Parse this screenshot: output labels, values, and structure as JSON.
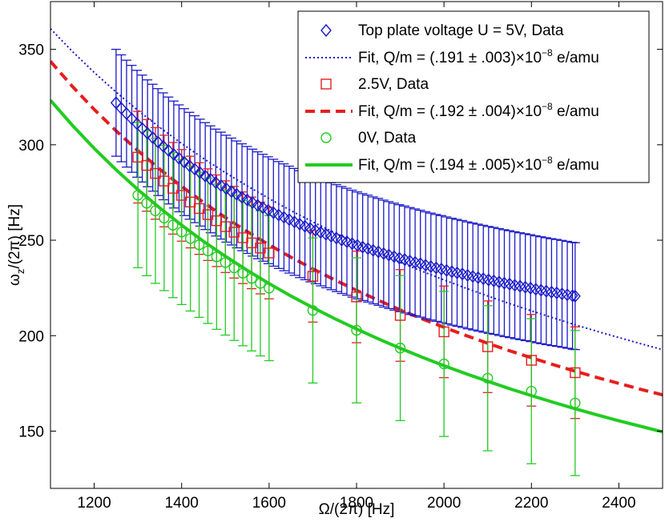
{
  "chart_data": {
    "type": "scatter",
    "xlabel": "Ω/(2π) [Hz]",
    "ylabel_main": "ω",
    "ylabel_sub": "z",
    "ylabel_rest": "/(2π) [Hz]",
    "xlim": [
      1100,
      2500
    ],
    "ylim": [
      120,
      375
    ],
    "xticks": [
      1200,
      1400,
      1600,
      1800,
      2000,
      2200,
      2400
    ],
    "yticks": [
      150,
      200,
      250,
      300,
      350
    ],
    "grid": false,
    "legend_position": "top-right",
    "colors": {
      "blue": "#1a1ac8",
      "red": "#e61e1e",
      "green": "#22cc22"
    },
    "series": [
      {
        "name": "Top plate voltage U = 5V, Data",
        "marker": "diamond",
        "color": "#1a1ac8",
        "x": [
          1250,
          1262,
          1274,
          1286,
          1298,
          1310,
          1322,
          1334,
          1346,
          1358,
          1370,
          1382,
          1394,
          1406,
          1418,
          1430,
          1442,
          1454,
          1466,
          1478,
          1490,
          1502,
          1514,
          1526,
          1538,
          1550,
          1562,
          1574,
          1586,
          1598,
          1610,
          1622,
          1634,
          1646,
          1658,
          1670,
          1682,
          1694,
          1706,
          1718,
          1730,
          1742,
          1754,
          1766,
          1778,
          1790,
          1802,
          1814,
          1826,
          1838,
          1850,
          1862,
          1874,
          1886,
          1898,
          1910,
          1922,
          1934,
          1946,
          1958,
          1970,
          1982,
          1994,
          2006,
          2018,
          2030,
          2042,
          2054,
          2066,
          2078,
          2090,
          2102,
          2114,
          2126,
          2138,
          2150,
          2162,
          2174,
          2186,
          2198,
          2210,
          2222,
          2234,
          2246,
          2258,
          2270,
          2282,
          2294,
          2300
        ],
        "y": [
          322,
          319.1,
          316.3,
          313.6,
          311,
          308.5,
          306,
          303.7,
          301.4,
          299.2,
          297,
          294.9,
          292.9,
          290.9,
          289,
          287.2,
          285.4,
          283.6,
          281.9,
          280.2,
          278.6,
          277,
          275.5,
          274,
          272.5,
          271.1,
          269.7,
          268.3,
          267,
          265.7,
          264.4,
          263.2,
          262,
          260.8,
          259.6,
          258.4,
          257.3,
          256.2,
          255.2,
          254.1,
          253.1,
          252.1,
          251.1,
          250.1,
          249.2,
          248.2,
          247.3,
          246.4,
          245.6,
          244.7,
          243.9,
          243,
          242.2,
          241.4,
          240.6,
          239.9,
          239.1,
          238.4,
          237.7,
          236.9,
          236.2,
          235.5,
          234.9,
          234.2,
          233.5,
          232.9,
          232.3,
          231.6,
          231,
          230.4,
          229.8,
          229.2,
          228.7,
          228.1,
          227.5,
          227,
          226.4,
          225.9,
          225.4,
          224.9,
          224.3,
          223.8,
          223.3,
          222.8,
          222.4,
          221.9,
          221.4,
          220.9,
          220.7
        ],
        "err": 28
      },
      {
        "name": "Fit, Q/m = (.191 ± .003)×10⁻⁸ e/amu",
        "line": "dotted",
        "color": "#1a1ac8",
        "x": [
          1100,
          1150,
          1200,
          1250,
          1300,
          1350,
          1400,
          1450,
          1500,
          1550,
          1600,
          1650,
          1700,
          1750,
          1800,
          1850,
          1900,
          1950,
          2000,
          2050,
          2100,
          2150,
          2200,
          2250,
          2300,
          2350,
          2400,
          2450,
          2500
        ],
        "y": [
          360.8,
          348.9,
          337.9,
          327.6,
          318,
          309.1,
          300.7,
          292.8,
          285.4,
          278.4,
          271.8,
          265.5,
          259.6,
          253.9,
          248.5,
          243.4,
          238.4,
          233.7,
          229.2,
          224.9,
          220.8,
          216.8,
          213,
          209.3,
          205.7,
          202.3,
          199,
          195.8,
          192.7
        ]
      },
      {
        "name": "2.5V, Data",
        "marker": "square",
        "color": "#e61e1e",
        "x": [
          1300,
          1320,
          1340,
          1360,
          1380,
          1400,
          1420,
          1440,
          1460,
          1480,
          1500,
          1520,
          1540,
          1560,
          1580,
          1600,
          1700,
          1800,
          1900,
          2000,
          2100,
          2200,
          2300
        ],
        "y": [
          293.5,
          289.2,
          285,
          281,
          277.2,
          273.5,
          270,
          266.6,
          263.4,
          260.2,
          257.1,
          254.2,
          251.3,
          248.6,
          245.9,
          243.3,
          231.1,
          220.3,
          210.6,
          202,
          194.2,
          187.1,
          180.6
        ],
        "err": 24
      },
      {
        "name": "Fit, Q/m = (.192 ± .004)×10⁻⁸ e/amu",
        "line": "dashed",
        "color": "#e61e1e",
        "x": [
          1100,
          1150,
          1200,
          1250,
          1300,
          1350,
          1400,
          1450,
          1500,
          1550,
          1600,
          1650,
          1700,
          1750,
          1800,
          1850,
          1900,
          1950,
          2000,
          2050,
          2100,
          2150,
          2200,
          2250,
          2300,
          2350,
          2400,
          2450,
          2500
        ],
        "y": [
          343.7,
          330.6,
          318.5,
          307.3,
          296.9,
          287.2,
          278.2,
          269.8,
          261.9,
          254.5,
          247.6,
          241.1,
          235,
          229.2,
          223.7,
          218.5,
          213.5,
          208.8,
          204.4,
          200.1,
          196,
          192.1,
          188.4,
          184.8,
          181.4,
          178.1,
          175,
          171.9,
          169
        ]
      },
      {
        "name": "0V, Data",
        "marker": "circle",
        "color": "#22cc22",
        "x": [
          1300,
          1320,
          1340,
          1360,
          1380,
          1400,
          1420,
          1440,
          1460,
          1480,
          1500,
          1520,
          1540,
          1560,
          1580,
          1600,
          1700,
          1800,
          1900,
          2000,
          2100,
          2200,
          2300
        ],
        "y": [
          273.6,
          269.4,
          265.4,
          261.6,
          257.9,
          254.3,
          250.9,
          247.6,
          244.4,
          241.3,
          238.3,
          235.5,
          232.7,
          230,
          227.4,
          224.9,
          213.2,
          202.8,
          193.5,
          185.2,
          177.7,
          170.9,
          164.7
        ],
        "err": 38
      },
      {
        "name": "Fit, Q/m = (.194 ± .005)×10⁻⁸ e/amu",
        "line": "solid",
        "color": "#22cc22",
        "x": [
          1100,
          1150,
          1200,
          1250,
          1300,
          1350,
          1400,
          1450,
          1500,
          1550,
          1600,
          1650,
          1700,
          1750,
          1800,
          1850,
          1900,
          1950,
          2000,
          2050,
          2100,
          2150,
          2200,
          2250,
          2300,
          2350,
          2400,
          2450,
          2500
        ],
        "y": [
          323.3,
          310.2,
          298.1,
          286.9,
          276.5,
          266.9,
          257.9,
          249.4,
          241.6,
          234.2,
          227.3,
          220.8,
          214.7,
          208.9,
          203.5,
          198.3,
          193.4,
          188.7,
          184.3,
          180.1,
          176.1,
          172.2,
          168.6,
          165.1,
          161.7,
          158.5,
          155.4,
          152.5,
          149.6
        ]
      }
    ],
    "legend": [
      {
        "label": "Top plate voltage U = 5V, Data",
        "symbol": "diamond",
        "color": "#1a1ac8"
      },
      {
        "label_main": "Fit, Q/m = (.191 ± .003)×10",
        "label_sup": "−8",
        "label_tail": " e/amu",
        "symbol": "dotted",
        "color": "#1a1ac8"
      },
      {
        "label": "2.5V, Data",
        "symbol": "square",
        "color": "#e61e1e"
      },
      {
        "label_main": "Fit, Q/m = (.192 ± .004)×10",
        "label_sup": "−8",
        "label_tail": " e/amu",
        "symbol": "dashed",
        "color": "#e61e1e"
      },
      {
        "label": "0V, Data",
        "symbol": "circle",
        "color": "#22cc22"
      },
      {
        "label_main": "Fit, Q/m = (.194 ± .005)×10",
        "label_sup": "−8",
        "label_tail": " e/amu",
        "symbol": "solid",
        "color": "#22cc22"
      }
    ]
  }
}
